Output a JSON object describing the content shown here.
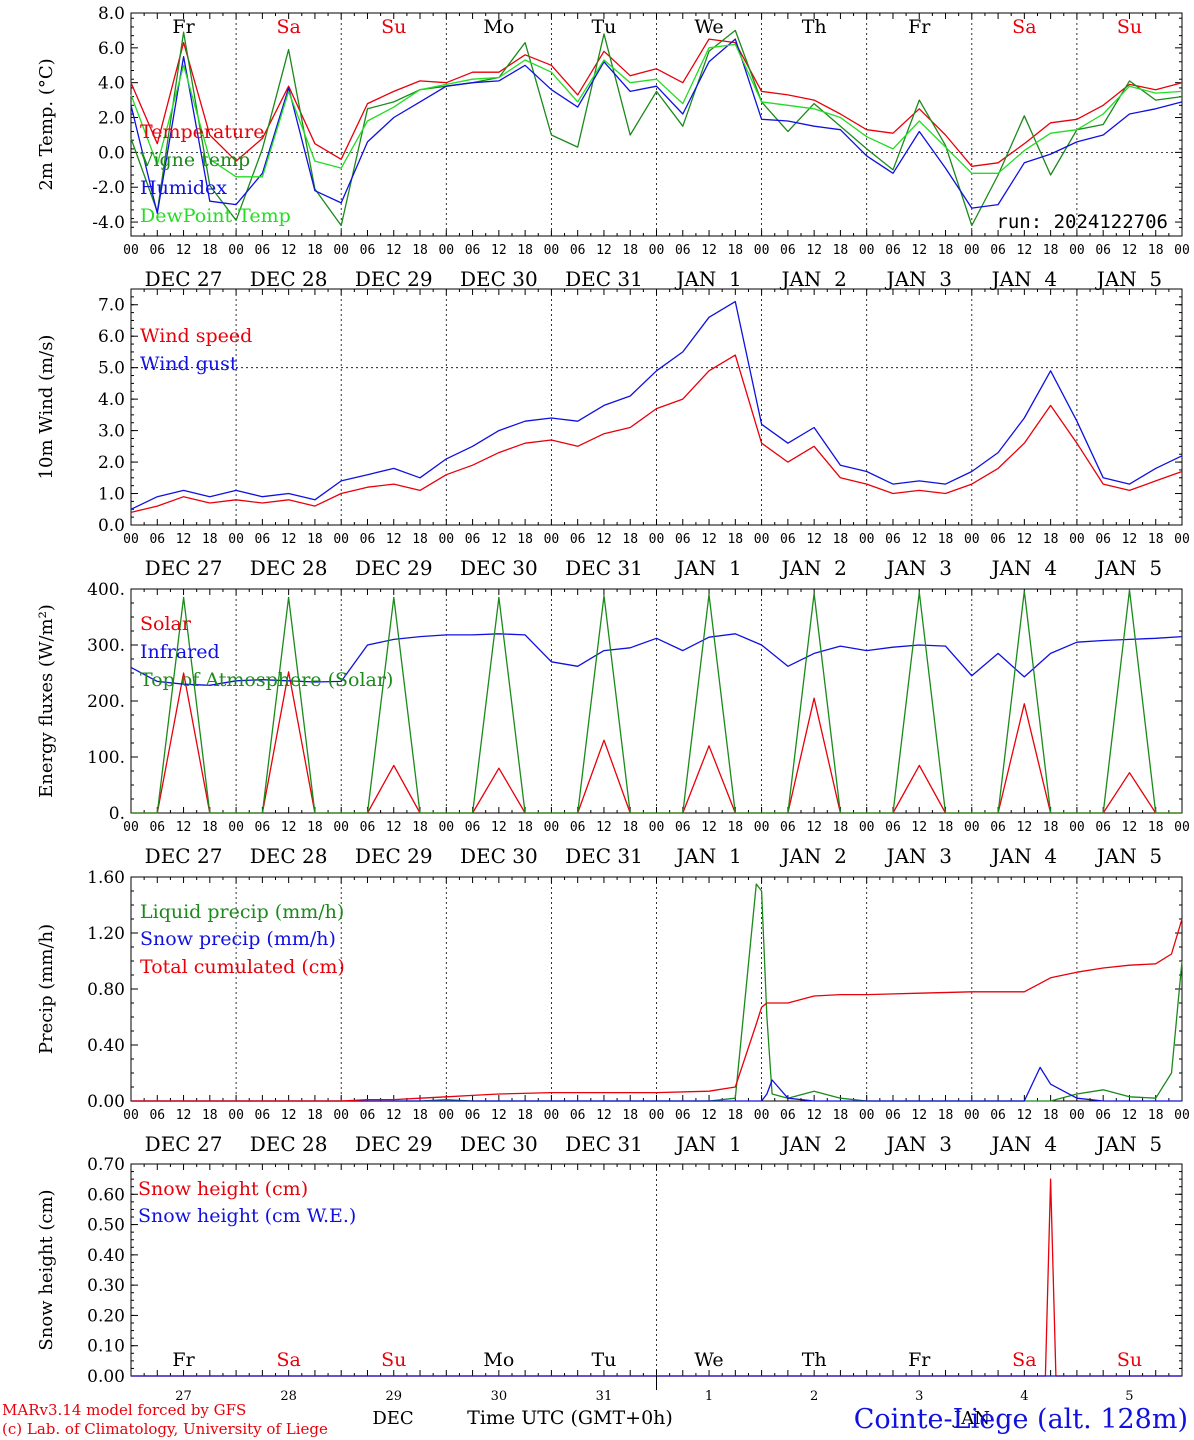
{
  "days": [
    "Fr",
    "Sa",
    "Su",
    "Mo",
    "Tu",
    "We",
    "Th",
    "Fr",
    "Sa",
    "Su"
  ],
  "day_colors": [
    "#000000",
    "#e8000b",
    "#e8000b",
    "#000000",
    "#000000",
    "#000000",
    "#000000",
    "#000000",
    "#e8000b",
    "#e8000b"
  ],
  "dates": [
    "DEC 27",
    "DEC 28",
    "DEC 29",
    "DEC 30",
    "DEC 31",
    "JAN  1",
    "JAN  2",
    "JAN  3",
    "JAN  4",
    "JAN  5"
  ],
  "hour_ticks": [
    "00",
    "06",
    "12",
    "18"
  ],
  "hour_ticks_end": "00",
  "run_label": "run: 2024122706",
  "bottom_dates": [
    "27",
    "28",
    "29",
    "30",
    "31",
    "1",
    "2",
    "3",
    "4",
    "5"
  ],
  "footer": {
    "credit1": "MARv3.14 model forced by GFS",
    "credit2": "(c) Lab. of Climatology, University of Liege",
    "month_dec": "DEC",
    "month_jan": "JAN",
    "time_label": "Time UTC (GMT+0h)",
    "station": "Cointe-Liege (alt. 128m)"
  },
  "colors": {
    "red": "#e8000b",
    "green": "#1a8a1a",
    "blue": "#1010e0",
    "lightgreen": "#22dd22",
    "axis": "#000000"
  },
  "chart_data": [
    {
      "type": "line",
      "ylabel": "2m Temp. (°C)",
      "ylim": [
        -4.8,
        8.0
      ],
      "yticks": [
        "8.0",
        "6.0",
        "4.0",
        "2.0",
        "0.0",
        "-2.0",
        "-4.0"
      ],
      "ytick_values": [
        8,
        6,
        4,
        2,
        0,
        -2,
        -4
      ],
      "ref_line": 0,
      "x_unit": "days since DEC 27 00 UTC",
      "x": [
        0,
        0.25,
        0.5,
        0.75,
        1,
        1.25,
        1.5,
        1.75,
        2,
        2.25,
        2.5,
        2.75,
        3,
        3.25,
        3.5,
        3.75,
        4,
        4.25,
        4.5,
        4.75,
        5,
        5.25,
        5.5,
        5.75,
        6,
        6.25,
        6.5,
        6.75,
        7,
        7.25,
        7.5,
        7.75,
        8,
        8.25,
        8.5,
        8.75,
        9,
        9.25,
        9.5,
        9.75,
        10
      ],
      "series": [
        {
          "name": "Temperature",
          "color": "red",
          "values": [
            4.0,
            0.5,
            6.3,
            1.0,
            -0.5,
            0.8,
            3.8,
            0.5,
            -0.4,
            2.8,
            3.5,
            4.1,
            4.0,
            4.6,
            4.6,
            5.6,
            5.0,
            3.3,
            5.8,
            4.4,
            4.8,
            4.0,
            6.5,
            6.3,
            3.5,
            3.3,
            3.0,
            2.2,
            1.3,
            1.1,
            2.5,
            1.0,
            -0.8,
            -0.6,
            0.5,
            1.7,
            1.9,
            2.7,
            3.9,
            3.6,
            4.0
          ]
        },
        {
          "name": "Vigne temp",
          "color": "green",
          "values": [
            0.8,
            -3.4,
            6.9,
            -1.9,
            -3.9,
            0.2,
            5.9,
            -2.1,
            -4.2,
            2.5,
            2.9,
            3.6,
            3.8,
            4.0,
            4.3,
            6.3,
            1.0,
            0.3,
            6.8,
            1.0,
            3.5,
            1.5,
            5.8,
            7.0,
            2.9,
            1.2,
            2.8,
            1.5,
            0.2,
            -1.0,
            3.0,
            0.4,
            -4.2,
            -1.3,
            2.1,
            -1.3,
            1.3,
            1.6,
            4.1,
            3.0,
            3.2
          ]
        },
        {
          "name": "Humidex",
          "color": "blue",
          "values": [
            2.7,
            -3.5,
            5.5,
            -2.8,
            -3.0,
            -1.2,
            3.7,
            -2.2,
            -2.9,
            0.6,
            2.0,
            2.9,
            3.8,
            4.0,
            4.1,
            5.0,
            3.6,
            2.6,
            5.2,
            3.5,
            3.8,
            2.2,
            5.2,
            6.5,
            1.9,
            1.8,
            1.5,
            1.3,
            -0.2,
            -1.2,
            1.2,
            -0.9,
            -3.2,
            -3.0,
            -0.6,
            -0.1,
            0.6,
            1.0,
            2.2,
            2.5,
            2.9
          ]
        },
        {
          "name": "DewPoint Temp",
          "color": "lightgreen",
          "values": [
            3.3,
            -0.7,
            5.0,
            -0.4,
            -1.4,
            -1.4,
            3.5,
            -0.5,
            -0.9,
            1.8,
            2.6,
            3.6,
            3.9,
            4.2,
            4.3,
            5.3,
            4.6,
            2.9,
            5.3,
            4.0,
            4.2,
            2.8,
            6.0,
            6.2,
            2.9,
            2.7,
            2.5,
            2.0,
            0.9,
            0.2,
            1.8,
            0.3,
            -1.2,
            -1.2,
            0.1,
            1.1,
            1.3,
            2.2,
            3.8,
            3.4,
            3.5
          ]
        }
      ]
    },
    {
      "type": "line",
      "ylabel": "10m Wind (m/s)",
      "ylim": [
        0,
        7.5
      ],
      "yticks": [
        "7.0",
        "6.0",
        "5.0",
        "4.0",
        "3.0",
        "2.0",
        "1.0",
        "0.0"
      ],
      "ytick_values": [
        7,
        6,
        5,
        4,
        3,
        2,
        1,
        0
      ],
      "ref_line": 5,
      "x_unit": "days since DEC 27 00 UTC",
      "x": [
        0,
        0.25,
        0.5,
        0.75,
        1,
        1.25,
        1.5,
        1.75,
        2,
        2.25,
        2.5,
        2.75,
        3,
        3.25,
        3.5,
        3.75,
        4,
        4.25,
        4.5,
        4.75,
        5,
        5.25,
        5.5,
        5.75,
        6,
        6.25,
        6.5,
        6.75,
        7,
        7.25,
        7.5,
        7.75,
        8,
        8.25,
        8.5,
        8.75,
        9,
        9.25,
        9.5,
        9.75,
        10
      ],
      "series": [
        {
          "name": "Wind speed",
          "color": "red",
          "values": [
            0.4,
            0.6,
            0.9,
            0.7,
            0.8,
            0.7,
            0.8,
            0.6,
            1.0,
            1.2,
            1.3,
            1.1,
            1.6,
            1.9,
            2.3,
            2.6,
            2.7,
            2.5,
            2.9,
            3.1,
            3.7,
            4.0,
            4.9,
            5.4,
            2.6,
            2.0,
            2.5,
            1.5,
            1.3,
            1.0,
            1.1,
            1.0,
            1.3,
            1.8,
            2.6,
            3.8,
            2.6,
            1.3,
            1.1,
            1.4,
            1.7
          ]
        },
        {
          "name": "Wind gust",
          "color": "blue",
          "values": [
            0.5,
            0.9,
            1.1,
            0.9,
            1.1,
            0.9,
            1.0,
            0.8,
            1.4,
            1.6,
            1.8,
            1.5,
            2.1,
            2.5,
            3.0,
            3.3,
            3.4,
            3.3,
            3.8,
            4.1,
            4.9,
            5.5,
            6.6,
            7.1,
            3.2,
            2.6,
            3.1,
            1.9,
            1.7,
            1.3,
            1.4,
            1.3,
            1.7,
            2.3,
            3.4,
            4.9,
            3.3,
            1.5,
            1.3,
            1.8,
            2.2
          ]
        }
      ]
    },
    {
      "type": "line",
      "ylabel": "Energy fluxes (W/m²)",
      "ylim": [
        0,
        400
      ],
      "yticks": [
        "400.",
        "300.",
        "200.",
        "100.",
        "0."
      ],
      "ytick_values": [
        400,
        300,
        200,
        100,
        0
      ],
      "x_unit": "days since DEC 27 00 UTC",
      "x": [
        0,
        0.25,
        0.5,
        0.75,
        1,
        1.25,
        1.5,
        1.75,
        2,
        2.25,
        2.5,
        2.75,
        3,
        3.25,
        3.5,
        3.75,
        4,
        4.25,
        4.5,
        4.75,
        5,
        5.25,
        5.5,
        5.75,
        6,
        6.25,
        6.5,
        6.75,
        7,
        7.25,
        7.5,
        7.75,
        8,
        8.25,
        8.5,
        8.75,
        9,
        9.25,
        9.5,
        9.75,
        10
      ],
      "series": [
        {
          "name": "Solar",
          "color": "red",
          "values": [
            0,
            0,
            250,
            0,
            0,
            0,
            252,
            0,
            0,
            0,
            85,
            0,
            0,
            0,
            80,
            0,
            0,
            0,
            130,
            0,
            0,
            0,
            120,
            0,
            0,
            0,
            205,
            0,
            0,
            0,
            85,
            0,
            0,
            0,
            195,
            0,
            0,
            0,
            72,
            0,
            0
          ]
        },
        {
          "name": "Infrared",
          "color": "blue",
          "values": [
            260,
            235,
            230,
            228,
            236,
            238,
            236,
            234,
            235,
            300,
            310,
            315,
            318,
            318,
            320,
            318,
            270,
            262,
            290,
            295,
            312,
            290,
            314,
            320,
            300,
            262,
            285,
            298,
            290,
            296,
            300,
            298,
            245,
            285,
            243,
            285,
            305,
            308,
            310,
            312,
            315
          ]
        },
        {
          "name": "Top of Atmosphere (Solar)",
          "color": "green",
          "values": [
            0,
            0,
            385,
            0,
            0,
            0,
            385,
            0,
            0,
            0,
            385,
            0,
            0,
            0,
            385,
            0,
            0,
            0,
            388,
            0,
            0,
            0,
            390,
            0,
            0,
            0,
            392,
            0,
            0,
            0,
            394,
            0,
            0,
            0,
            396,
            0,
            0,
            0,
            398,
            0,
            0
          ]
        }
      ]
    },
    {
      "type": "line",
      "ylabel": "Precip (mm/h)",
      "ylim": [
        0,
        1.6
      ],
      "yticks": [
        "1.60",
        "1.20",
        "0.80",
        "0.40",
        "0.00"
      ],
      "ytick_values": [
        1.6,
        1.2,
        0.8,
        0.4,
        0
      ],
      "x_unit": "days since DEC 27 00 UTC",
      "x": [
        0,
        0.5,
        1,
        1.5,
        2,
        2.25,
        2.5,
        2.75,
        3,
        3.25,
        3.5,
        4,
        4.5,
        5,
        5.5,
        5.75,
        5.95,
        6,
        6.05,
        6.1,
        6.25,
        6.5,
        6.75,
        7,
        7.5,
        8,
        8.25,
        8.5,
        8.65,
        8.75,
        9,
        9.25,
        9.5,
        9.75,
        9.9,
        10
      ],
      "series": [
        {
          "name": "Liquid precip (mm/h)",
          "color": "green",
          "values": [
            0,
            0,
            0,
            0,
            0,
            0,
            0,
            0,
            0.01,
            0,
            0,
            0,
            0,
            0,
            0,
            0.02,
            1.55,
            1.5,
            0.6,
            0.05,
            0.02,
            0.07,
            0.02,
            0,
            0,
            0,
            0,
            0,
            0,
            0,
            0.05,
            0.08,
            0.03,
            0.02,
            0.2,
            1.0
          ]
        },
        {
          "name": "Snow precip (mm/h)",
          "color": "blue",
          "values": [
            0,
            0,
            0,
            0,
            0,
            0,
            0,
            0,
            0,
            0,
            0,
            0,
            0,
            0,
            0,
            0,
            0,
            0,
            0.05,
            0.15,
            0.02,
            0,
            0,
            0,
            0,
            0,
            0,
            0,
            0.24,
            0.12,
            0.02,
            0,
            0,
            0,
            0,
            0
          ]
        },
        {
          "name": "Total cumulated (cm)",
          "color": "red",
          "values": [
            0,
            0,
            0,
            0,
            0,
            0.01,
            0.01,
            0.02,
            0.03,
            0.04,
            0.05,
            0.06,
            0.06,
            0.06,
            0.07,
            0.1,
            0.55,
            0.67,
            0.7,
            0.7,
            0.7,
            0.75,
            0.76,
            0.76,
            0.77,
            0.78,
            0.78,
            0.78,
            0.84,
            0.88,
            0.92,
            0.95,
            0.97,
            0.98,
            1.05,
            1.3
          ]
        }
      ]
    },
    {
      "type": "line",
      "ylabel": "Snow height (cm)",
      "ylim": [
        0,
        0.7
      ],
      "yticks": [
        "0.70",
        "0.60",
        "0.50",
        "0.40",
        "0.30",
        "0.20",
        "0.10",
        "0.00"
      ],
      "ytick_values": [
        0.7,
        0.6,
        0.5,
        0.4,
        0.3,
        0.2,
        0.1,
        0
      ],
      "x_unit": "days since DEC 27 00 UTC",
      "x": [
        0,
        8.7,
        8.75,
        8.8,
        10
      ],
      "series": [
        {
          "name": "Snow height (cm)",
          "color": "red",
          "values": [
            0,
            0,
            0.65,
            0,
            0
          ]
        },
        {
          "name": "Snow height (cm W.E.)",
          "color": "blue",
          "values": [
            0,
            0,
            0,
            0,
            0
          ]
        }
      ]
    }
  ]
}
